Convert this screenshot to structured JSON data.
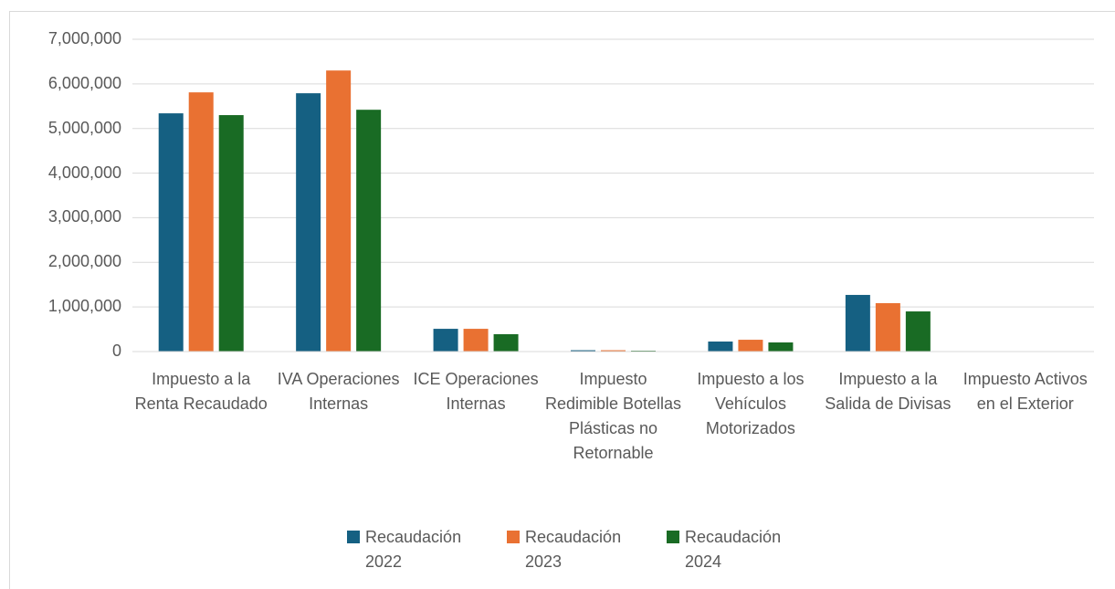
{
  "chart_data": {
    "type": "bar",
    "categories": [
      "Impuesto a la Renta Recaudado",
      "IVA Operaciones Internas",
      "ICE Operaciones Internas",
      "Impuesto Redimible Botellas Plásticas no Retornable",
      "Impuesto a los Vehículos Motorizados",
      "Impuesto a la Salida de Divisas",
      "Impuesto Activos en el Exterior"
    ],
    "series": [
      {
        "name": "Recaudación 2022",
        "color": "#156082",
        "values": [
          5340000,
          5790000,
          510000,
          30000,
          225000,
          1270000,
          10000
        ]
      },
      {
        "name": "Recaudación 2023",
        "color": "#e97132",
        "values": [
          5810000,
          6300000,
          510000,
          30000,
          265000,
          1085000,
          10000
        ]
      },
      {
        "name": "Recaudación 2024",
        "color": "#196b24",
        "values": [
          5300000,
          5420000,
          390000,
          20000,
          205000,
          900000,
          10000
        ]
      }
    ],
    "ylim": [
      0,
      7000000
    ],
    "yticks": [
      0,
      {
        "value": 1000000,
        "label": "1,000,000"
      },
      {
        "value": 2000000,
        "label": "2,000,000"
      },
      {
        "value": 3000000,
        "label": "3,000,000"
      },
      {
        "value": 4000000,
        "label": "4,000,000"
      },
      {
        "value": 5000000,
        "label": "5,000,000"
      },
      {
        "value": 6000000,
        "label": "6,000,000"
      },
      {
        "value": 7000000,
        "label": "7,000,000"
      }
    ],
    "grid": true,
    "legend": "bottom"
  }
}
